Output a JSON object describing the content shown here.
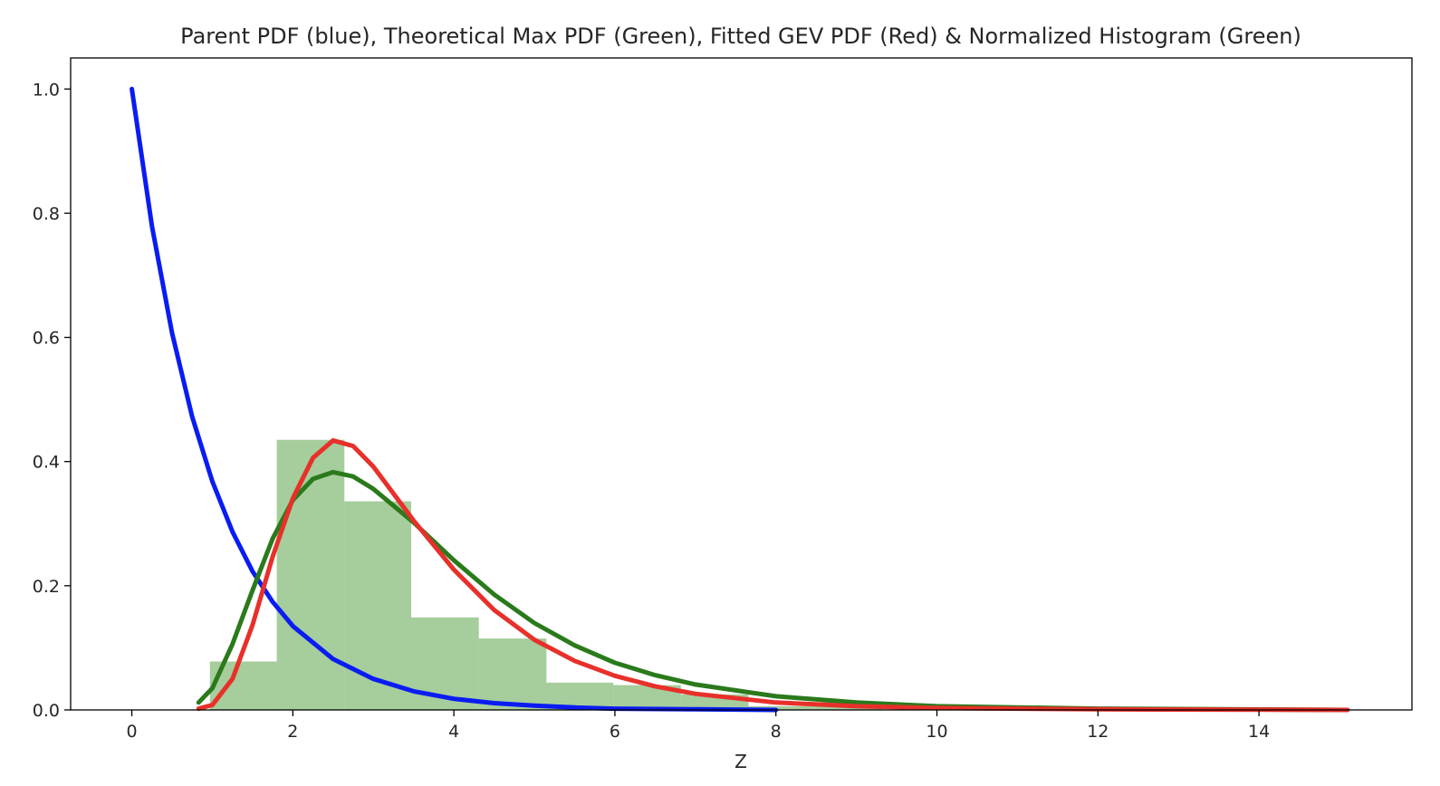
{
  "chart_data": {
    "type": "histogram+line",
    "title": "Parent PDF (blue), Theoretical Max PDF (Green), Fitted GEV PDF (Red) & Normalized Histogram (Green)",
    "xlabel": "Z",
    "ylabel": "",
    "xlim": [
      -0.76,
      15.9
    ],
    "ylim": [
      0,
      1.05
    ],
    "xticks": [
      0,
      2,
      4,
      6,
      8,
      10,
      12,
      14
    ],
    "yticks": [
      0.0,
      0.2,
      0.4,
      0.6,
      0.8,
      1.0
    ],
    "xtick_labels": [
      "0",
      "2",
      "4",
      "6",
      "8",
      "10",
      "12",
      "14"
    ],
    "ytick_labels": [
      "0.0",
      "0.2",
      "0.4",
      "0.6",
      "0.8",
      "1.0"
    ],
    "grid": false,
    "legend": "none",
    "histogram": {
      "name": "Normalized Histogram",
      "color": "#6aab5a",
      "opacity": 0.6,
      "bins": [
        0.97,
        1.8,
        2.64,
        3.47,
        4.31,
        5.15,
        5.98,
        6.82,
        7.66,
        8.49,
        9.33
      ],
      "heights": [
        0.078,
        0.435,
        0.336,
        0.149,
        0.115,
        0.044,
        0.04,
        0.025,
        0.006,
        0.012
      ]
    },
    "series": [
      {
        "name": "Parent PDF",
        "color": "#0a1cf2",
        "x": [
          0,
          0.25,
          0.5,
          0.75,
          1,
          1.25,
          1.5,
          1.75,
          2,
          2.5,
          3,
          3.5,
          4,
          4.5,
          5,
          5.5,
          6,
          7,
          8
        ],
        "y": [
          1.0,
          0.779,
          0.607,
          0.472,
          0.368,
          0.287,
          0.223,
          0.174,
          0.135,
          0.082,
          0.05,
          0.03,
          0.018,
          0.011,
          0.007,
          0.004,
          0.002,
          0.001,
          0.0
        ]
      },
      {
        "name": "Theoretical Max PDF",
        "color": "#2a7a1c",
        "x": [
          0.83,
          1.0,
          1.25,
          1.5,
          1.75,
          2.0,
          2.25,
          2.5,
          2.75,
          3.0,
          3.5,
          4.0,
          4.5,
          5.0,
          5.5,
          6.0,
          6.5,
          7.0,
          8.0,
          9.0,
          10.0,
          12.0,
          15.1
        ],
        "y": [
          0.012,
          0.035,
          0.106,
          0.193,
          0.276,
          0.338,
          0.372,
          0.383,
          0.376,
          0.356,
          0.302,
          0.241,
          0.186,
          0.14,
          0.104,
          0.076,
          0.056,
          0.041,
          0.022,
          0.012,
          0.006,
          0.002,
          0.0
        ]
      },
      {
        "name": "Fitted GEV PDF",
        "color": "#e8302a",
        "x": [
          0.83,
          1.0,
          1.25,
          1.5,
          1.75,
          2.0,
          2.25,
          2.5,
          2.75,
          3.0,
          3.5,
          4.0,
          4.5,
          5.0,
          5.5,
          6.0,
          6.5,
          7.0,
          8.0,
          9.0,
          10.0,
          12.0,
          15.1
        ],
        "y": [
          0.002,
          0.008,
          0.05,
          0.137,
          0.247,
          0.341,
          0.406,
          0.434,
          0.425,
          0.392,
          0.305,
          0.226,
          0.161,
          0.113,
          0.079,
          0.055,
          0.038,
          0.026,
          0.012,
          0.006,
          0.003,
          0.001,
          0.0
        ]
      }
    ]
  }
}
